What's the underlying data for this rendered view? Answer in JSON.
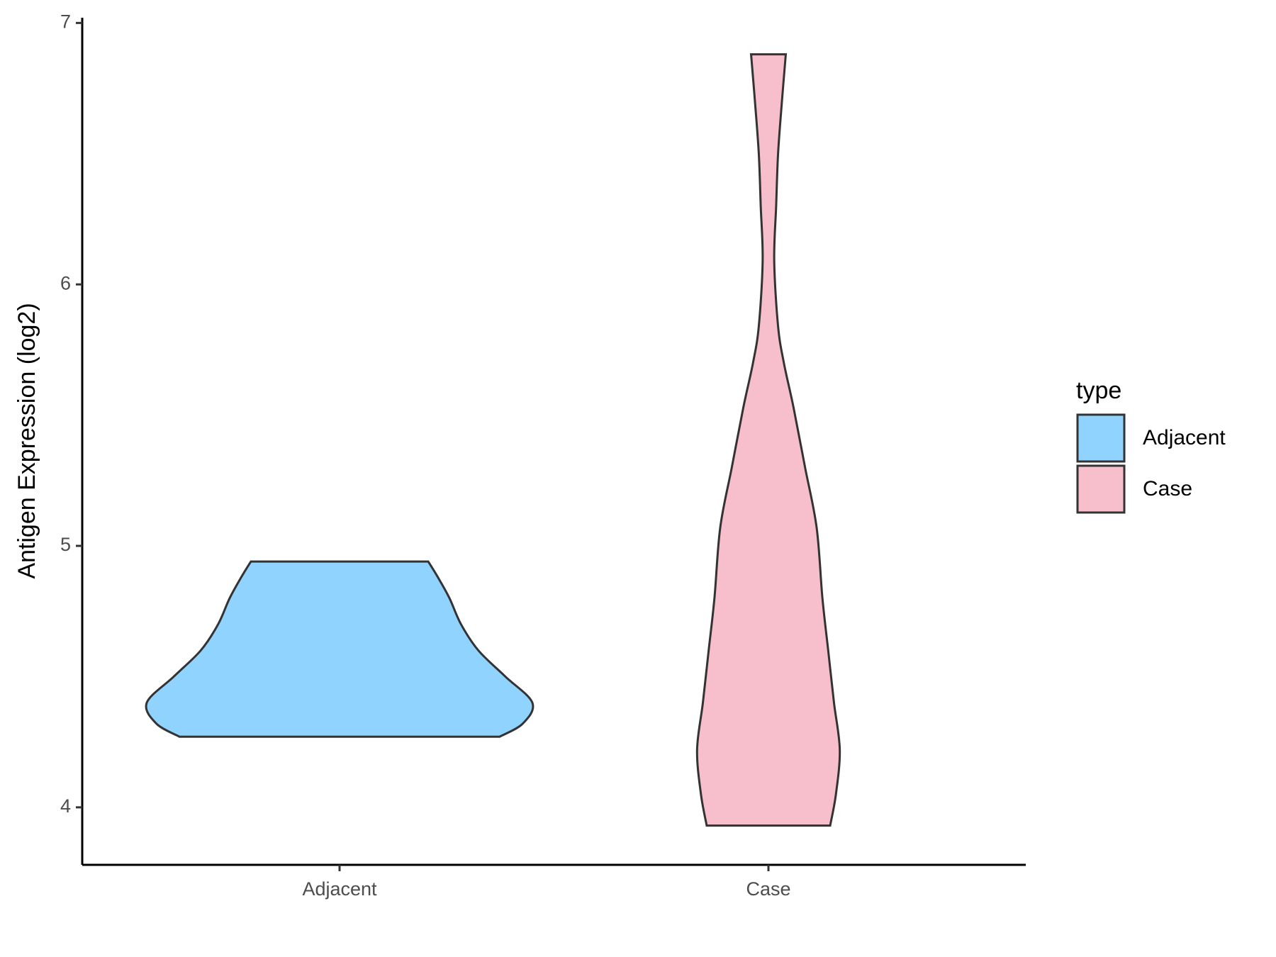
{
  "chart_data": {
    "type": "violin",
    "ylabel": "Antigen Expression (log2)",
    "categories": [
      "Adjacent",
      "Case"
    ],
    "ylim": [
      3.78,
      7.02
    ],
    "yticks": [
      4,
      5,
      6,
      7
    ],
    "legend_title": "type",
    "legend_position": "right",
    "series": [
      {
        "name": "Adjacent",
        "color": "#8fd3fe",
        "y": [
          4.27,
          4.32,
          4.4,
          4.5,
          4.6,
          4.7,
          4.8,
          4.88,
          4.94
        ],
        "density": [
          0.83,
          0.95,
          1.0,
          0.86,
          0.72,
          0.63,
          0.57,
          0.51,
          0.46
        ]
      },
      {
        "name": "Case",
        "color": "#f7bfcb",
        "y": [
          3.93,
          4.05,
          4.22,
          4.4,
          4.6,
          4.8,
          5.07,
          5.3,
          5.53,
          5.7,
          5.84,
          6.09,
          6.3,
          6.5,
          6.7,
          6.88
        ],
        "density": [
          0.32,
          0.35,
          0.37,
          0.34,
          0.31,
          0.28,
          0.25,
          0.19,
          0.13,
          0.08,
          0.05,
          0.03,
          0.04,
          0.05,
          0.07,
          0.09
        ]
      }
    ]
  }
}
